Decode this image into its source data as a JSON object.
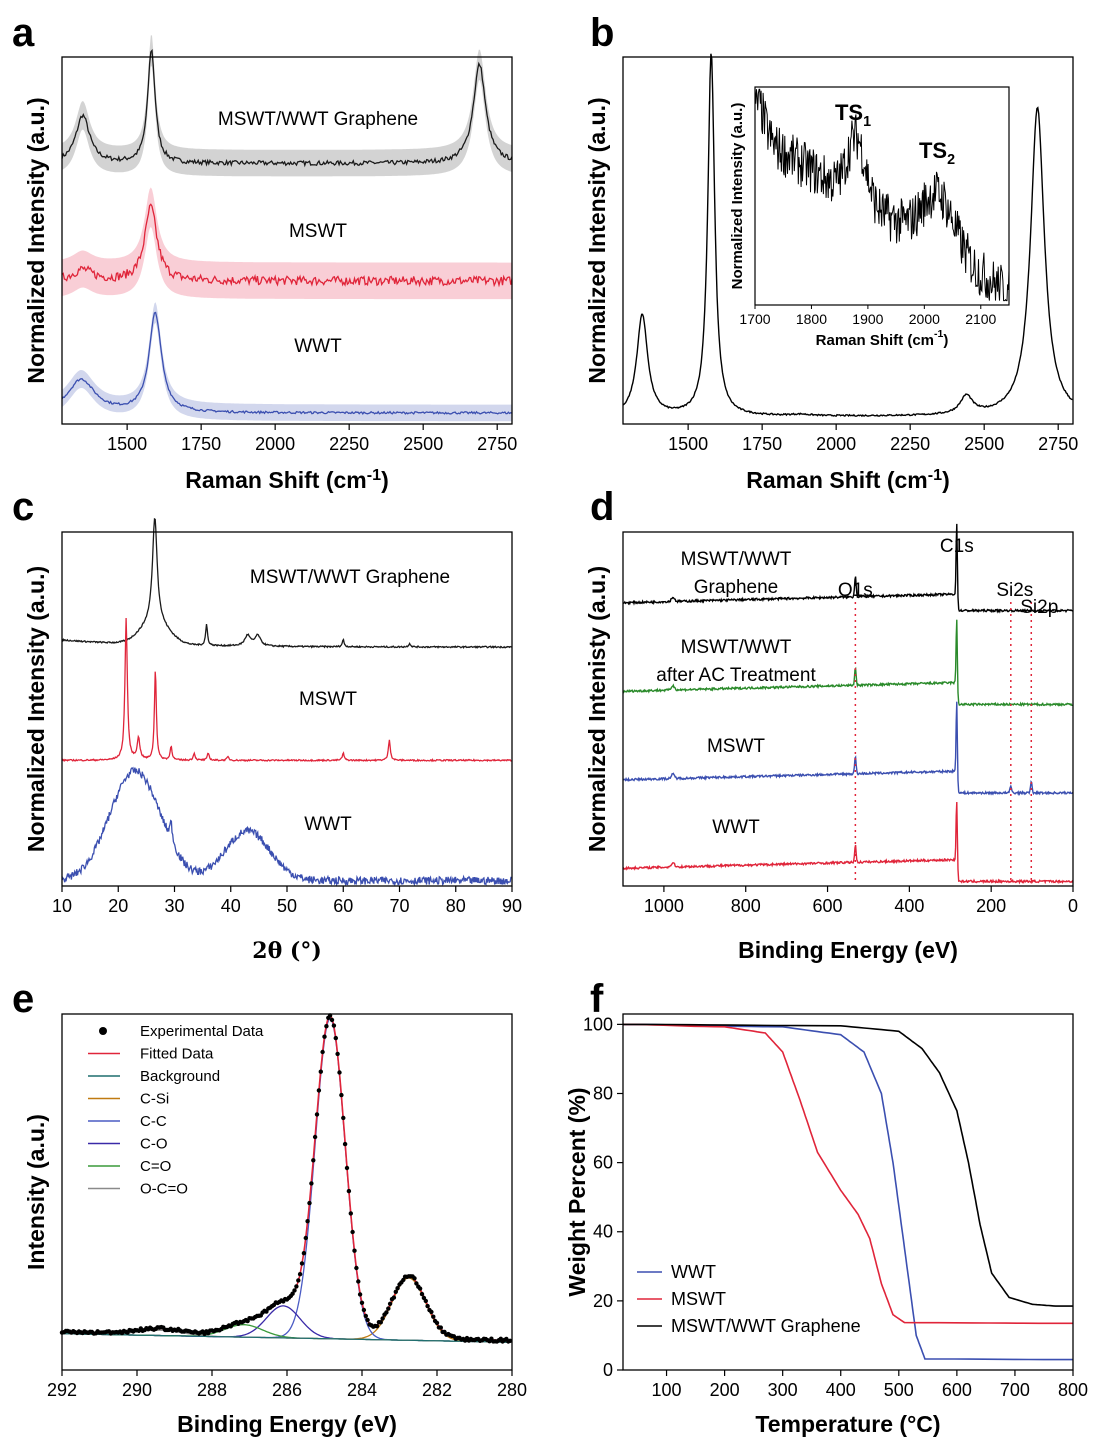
{
  "chart_data": [
    {
      "panel": "a",
      "type": "line",
      "xlabel": "Raman Shift (cm",
      "xlabel_sup": "-1",
      "xlabel_end": ")",
      "ylabel": "Normalized Intensity (a.u.)",
      "xlim": [
        1280,
        2800
      ],
      "xticks": [
        1500,
        1750,
        2000,
        2250,
        2500,
        2750
      ],
      "series": [
        {
          "name": "MSWT/WWT Graphene",
          "color": "#1a1a1a",
          "band": "#c8c8c8",
          "offset": 0.68,
          "noise": 0.006,
          "peaks": [
            [
              1350,
              0.13,
              28
            ],
            [
              1582,
              0.31,
              15
            ],
            [
              2690,
              0.27,
              25
            ]
          ],
          "base": 0.0
        },
        {
          "name": "MSWT",
          "color": "#e0253a",
          "band": "#f7c2cc",
          "offset": 0.36,
          "noise": 0.012,
          "peaks": [
            [
              1350,
              0.03,
              40
            ],
            [
              1580,
              0.2,
              25
            ]
          ],
          "base": 0.0
        },
        {
          "name": "WWT",
          "color": "#3b4fb0",
          "band": "#c7cde9",
          "offset": 0.0,
          "noise": 0.003,
          "peaks": [
            [
              1345,
              0.09,
              55
            ],
            [
              1595,
              0.27,
              25
            ]
          ],
          "base": 0.0
        }
      ],
      "annotations": [
        "MSWT/WWT Graphene",
        "MSWT",
        "WWT"
      ]
    },
    {
      "panel": "b",
      "type": "line",
      "xlabel": "Raman Shift (cm",
      "xlabel_sup": "-1",
      "xlabel_end": ")",
      "ylabel": "Normalized Intensity (a.u.)",
      "xlim": [
        1280,
        2800
      ],
      "xticks": [
        1500,
        1750,
        2000,
        2250,
        2500,
        2750
      ],
      "series": [
        {
          "name": "MSWT/WWT Graphene",
          "color": "#000000",
          "peaks": [
            [
              1345,
              0.28,
              22
            ],
            [
              1578,
              1.0,
              14
            ],
            [
              1880,
              0.004,
              40
            ],
            [
              2440,
              0.05,
              25
            ],
            [
              2680,
              0.85,
              28
            ]
          ]
        }
      ],
      "inset": {
        "xlabel": "Raman Shift (cm",
        "xlabel_sup": "-1",
        "xlabel_end": ")",
        "ylabel": "Normalized Intensity (a.u.)",
        "xlim": [
          1700,
          2150
        ],
        "xticks": [
          1700,
          1800,
          1900,
          2000,
          2100
        ],
        "peaks": [
          {
            "label": "TS",
            "sub": "1",
            "x": 1880
          },
          {
            "label": "TS",
            "sub": "2",
            "x": 2030
          }
        ]
      }
    },
    {
      "panel": "c",
      "type": "line",
      "xlabel": "2θ (°)",
      "ylabel": "Normalized Intensity (a.u.)",
      "xlim": [
        10,
        90
      ],
      "xticks": [
        10,
        20,
        30,
        40,
        50,
        60,
        70,
        80,
        90
      ],
      "series": [
        {
          "name": "MSWT/WWT Graphene",
          "color": "#1a1a1a",
          "offset": 0.66,
          "peaks": [
            [
              26.5,
              0.3,
              0.5
            ],
            [
              26.5,
              0.06,
              2.5
            ],
            [
              35.7,
              0.06,
              0.2
            ],
            [
              43.0,
              0.03,
              0.6
            ],
            [
              44.8,
              0.03,
              0.6
            ],
            [
              60.0,
              0.02,
              0.2
            ],
            [
              71.8,
              0.01,
              0.2
            ]
          ]
        },
        {
          "name": "MSWT",
          "color": "#e0253a",
          "offset": 0.34,
          "peaks": [
            [
              21.4,
              0.4,
              0.25
            ],
            [
              23.6,
              0.06,
              0.3
            ],
            [
              26.6,
              0.26,
              0.2
            ],
            [
              29.4,
              0.04,
              0.2
            ],
            [
              33.5,
              0.02,
              0.2
            ],
            [
              36.0,
              0.02,
              0.2
            ],
            [
              39.5,
              0.01,
              0.2
            ],
            [
              60.0,
              0.02,
              0.2
            ],
            [
              68.2,
              0.06,
              0.2
            ]
          ]
        },
        {
          "name": "WWT",
          "color": "#3b4fb0",
          "offset": 0.0,
          "peaks": [
            [
              23.0,
              0.31,
              4.5
            ],
            [
              29.4,
              0.05,
              0.3
            ],
            [
              43.0,
              0.14,
              4.0
            ]
          ]
        }
      ],
      "annotations": [
        "MSWT/WWT Graphene",
        "MSWT",
        "WWT"
      ]
    },
    {
      "panel": "d",
      "type": "line",
      "xlabel": "Binding Energy (eV)",
      "ylabel": "Normalized Intenisty (a.u.)",
      "xlim": [
        1100,
        0
      ],
      "xticks": [
        1000,
        800,
        600,
        400,
        200,
        0
      ],
      "markers": [
        {
          "label": "O1s",
          "x": 532
        },
        {
          "label": "C1s",
          "x": 284
        },
        {
          "label": "Si2s",
          "x": 152
        },
        {
          "label": "Si2p",
          "x": 102
        }
      ],
      "series": [
        {
          "name": "MSWT/WWT Graphene",
          "label_lines": [
            "MSWT/WWT",
            "Graphene"
          ],
          "color": "#000000",
          "offset": 0.75
        },
        {
          "name": "MSWT/WWT after AC Treatment",
          "label_lines": [
            "MSWT/WWT",
            "after AC Treatment"
          ],
          "color": "#2a8a2a",
          "offset": 0.5
        },
        {
          "name": "MSWT",
          "label_lines": [
            "MSWT"
          ],
          "color": "#3b4fb0",
          "offset": 0.25
        },
        {
          "name": "WWT",
          "label_lines": [
            "WWT"
          ],
          "color": "#e0253a",
          "offset": 0.0
        }
      ]
    },
    {
      "panel": "e",
      "type": "line",
      "xlabel": "Binding Energy (eV)",
      "ylabel": "Intensity (a.u.)",
      "xlim": [
        292,
        280
      ],
      "xticks": [
        292,
        290,
        288,
        286,
        284,
        282,
        280
      ],
      "legend": [
        {
          "label": "Experimental Data",
          "color": "#000000",
          "marker": "dot"
        },
        {
          "label": "Fitted Data",
          "color": "#e0253a"
        },
        {
          "label": "Background",
          "color": "#1f6f6f"
        },
        {
          "label": "C-Si",
          "color": "#c07a10"
        },
        {
          "label": "C-C",
          "color": "#4a5bc4"
        },
        {
          "label": "C-O",
          "color": "#3a2aa8"
        },
        {
          "label": "C=O",
          "color": "#3a9a3a"
        },
        {
          "label": "O-C=O",
          "color": "#8a8a8a"
        }
      ],
      "components": [
        {
          "name": "C-Si",
          "center": 282.75,
          "height": 0.175,
          "width": 0.45
        },
        {
          "name": "C-C",
          "center": 284.85,
          "height": 0.9,
          "width": 0.4
        },
        {
          "name": "C-O",
          "center": 286.1,
          "height": 0.09,
          "width": 0.45
        },
        {
          "name": "C=O",
          "center": 287.15,
          "height": 0.035,
          "width": 0.5
        },
        {
          "name": "O-C=O",
          "center": 289.4,
          "height": 0.015,
          "width": 0.6
        }
      ]
    },
    {
      "panel": "f",
      "type": "line",
      "xlabel": "Temperature (°C)",
      "ylabel": "Weight Percent (%)",
      "xlim": [
        25,
        800
      ],
      "ylim": [
        0,
        103
      ],
      "xticks": [
        100,
        200,
        300,
        400,
        500,
        600,
        700,
        800
      ],
      "yticks": [
        0,
        20,
        40,
        60,
        80,
        100
      ],
      "series": [
        {
          "name": "WWT",
          "color": "#3b4fb0",
          "residue": 3,
          "points": [
            [
              25,
              100
            ],
            [
              300,
              99.3
            ],
            [
              400,
              97
            ],
            [
              440,
              92
            ],
            [
              470,
              80
            ],
            [
              490,
              60
            ],
            [
              510,
              35
            ],
            [
              530,
              10
            ],
            [
              545,
              3.2
            ],
            [
              800,
              3
            ]
          ]
        },
        {
          "name": "MSWT",
          "color": "#e0253a",
          "residue": 13.5,
          "points": [
            [
              25,
              100
            ],
            [
              200,
              99.3
            ],
            [
              270,
              97.5
            ],
            [
              300,
              92
            ],
            [
              330,
              78
            ],
            [
              360,
              63
            ],
            [
              400,
              52
            ],
            [
              430,
              45
            ],
            [
              450,
              38
            ],
            [
              470,
              25
            ],
            [
              490,
              16
            ],
            [
              510,
              13.7
            ],
            [
              800,
              13.5
            ]
          ]
        },
        {
          "name": "MSWT/WWT Graphene",
          "color": "#000000",
          "residue": 18.5,
          "points": [
            [
              25,
              100
            ],
            [
              400,
              99.6
            ],
            [
              500,
              98
            ],
            [
              540,
              93
            ],
            [
              570,
              86
            ],
            [
              600,
              75
            ],
            [
              620,
              60
            ],
            [
              640,
              42
            ],
            [
              660,
              28
            ],
            [
              690,
              21
            ],
            [
              730,
              19
            ],
            [
              770,
              18.5
            ],
            [
              800,
              18.5
            ]
          ]
        }
      ]
    }
  ],
  "panel_letters": [
    "a",
    "b",
    "c",
    "d",
    "e",
    "f"
  ]
}
